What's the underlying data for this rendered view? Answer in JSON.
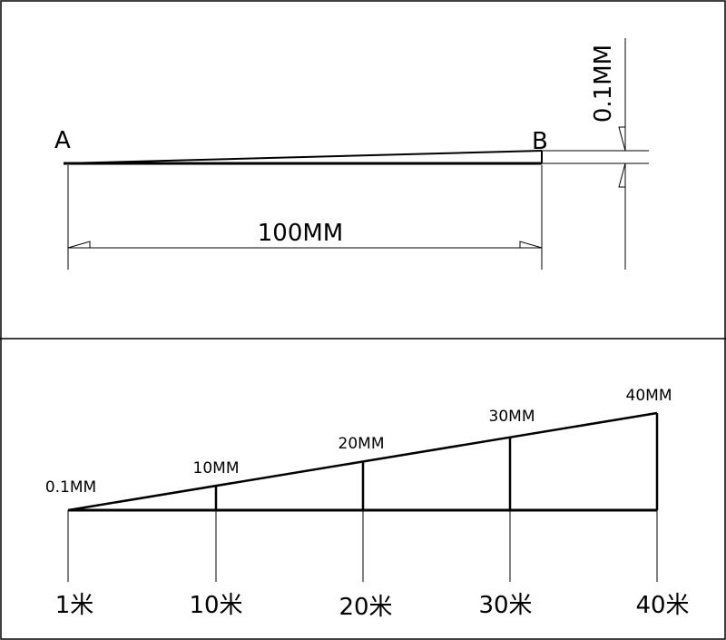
{
  "panel_top": {
    "point_a": "A",
    "point_b": "B",
    "length_label": "100MM",
    "height_label": "0.1MM"
  },
  "panel_bottom": {
    "heights": [
      "0.1MM",
      "10MM",
      "20MM",
      "30MM",
      "40MM"
    ],
    "distances": [
      "1米",
      "10米",
      "20米",
      "30米",
      "40米"
    ]
  },
  "colors": {
    "line": "#000000",
    "background": "#ffffff"
  }
}
